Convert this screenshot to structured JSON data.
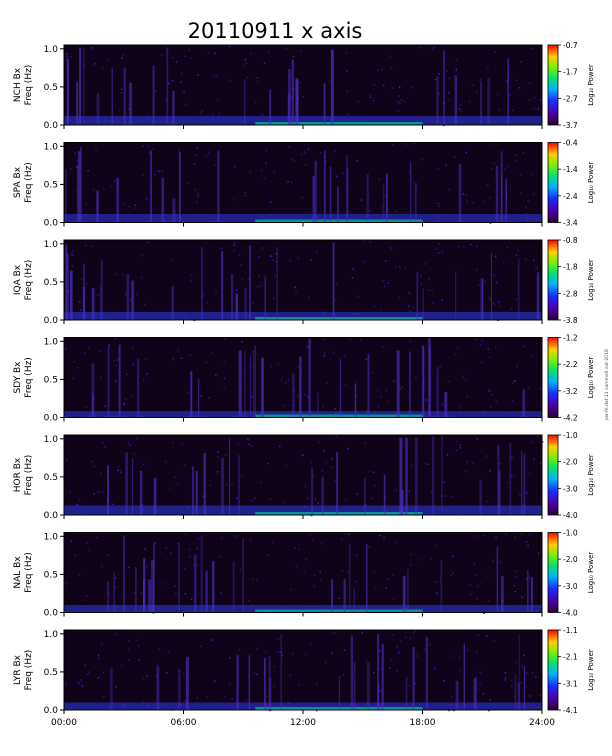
{
  "title": "20110911 x axis",
  "side_note": "pw-RI.dat:11 sammell-zat-2018",
  "chart_data": [
    {
      "type": "heatmap",
      "station": "NCH",
      "ylabel": [
        "NCH Bx",
        "Freq (Hz)"
      ],
      "ylim": [
        0,
        1.05
      ],
      "yticks": [
        "0.0",
        "0.5",
        "1.0"
      ],
      "xticks": [
        "00:00",
        "06:00",
        "12:00",
        "18:00",
        "24:00"
      ],
      "colorbar": {
        "label": "Log₁₀ Power",
        "range": [
          -3.7,
          -0.7
        ],
        "ticks": [
          "-0.7",
          "-1.7",
          "-2.7",
          "-3.7"
        ]
      }
    },
    {
      "type": "heatmap",
      "station": "SPA",
      "ylabel": [
        "SPA Bx",
        "Freq (Hz)"
      ],
      "ylim": [
        0,
        1.05
      ],
      "yticks": [
        "0.0",
        "0.5",
        "1.0"
      ],
      "xticks": [
        "00:00",
        "06:00",
        "12:00",
        "18:00",
        "24:00"
      ],
      "colorbar": {
        "label": "Log₁₀ Power",
        "range": [
          -3.4,
          -0.4
        ],
        "ticks": [
          "-0.4",
          "-1.4",
          "-2.4",
          "-3.4"
        ]
      }
    },
    {
      "type": "heatmap",
      "station": "IQA",
      "ylabel": [
        "IQA Bx",
        "Freq (Hz)"
      ],
      "ylim": [
        0,
        1.05
      ],
      "yticks": [
        "0.0",
        "0.5",
        "1.0"
      ],
      "xticks": [
        "00:00",
        "06:00",
        "12:00",
        "18:00",
        "24:00"
      ],
      "colorbar": {
        "label": "Log₁₀ Power",
        "range": [
          -3.8,
          -0.8
        ],
        "ticks": [
          "-0.8",
          "-1.8",
          "-2.8",
          "-3.8"
        ]
      }
    },
    {
      "type": "heatmap",
      "station": "SDY",
      "ylabel": [
        "SDY Bx",
        "Freq (Hz)"
      ],
      "ylim": [
        0,
        1.05
      ],
      "yticks": [
        "0.0",
        "0.5",
        "1.0"
      ],
      "xticks": [
        "00:00",
        "06:00",
        "12:00",
        "18:00",
        "24:00"
      ],
      "colorbar": {
        "label": "Log₁₀ Power",
        "range": [
          -4.2,
          -1.2
        ],
        "ticks": [
          "-1.2",
          "-2.2",
          "-3.2",
          "-4.2"
        ]
      }
    },
    {
      "type": "heatmap",
      "station": "HOR",
      "ylabel": [
        "HOR Bx",
        "Freq (Hz)"
      ],
      "ylim": [
        0,
        1.05
      ],
      "yticks": [
        "0.0",
        "0.5",
        "1.0"
      ],
      "xticks": [
        "00:00",
        "06:00",
        "12:00",
        "18:00",
        "24:00"
      ],
      "colorbar": {
        "label": "Log₁₀ Power",
        "range": [
          -4.0,
          -1.0
        ],
        "ticks": [
          "-1.0",
          "-2.0",
          "-3.0",
          "-4.0"
        ]
      }
    },
    {
      "type": "heatmap",
      "station": "NAL",
      "ylabel": [
        "NAL Bx",
        "Freq (Hz)"
      ],
      "ylim": [
        0,
        1.05
      ],
      "yticks": [
        "0.0",
        "0.5",
        "1.0"
      ],
      "xticks": [
        "00:00",
        "06:00",
        "12:00",
        "18:00",
        "24:00"
      ],
      "colorbar": {
        "label": "Log₁₀ Power",
        "range": [
          -4.0,
          -1.0
        ],
        "ticks": [
          "-1.0",
          "-2.0",
          "-3.0",
          "-4.0"
        ]
      }
    },
    {
      "type": "heatmap",
      "station": "LYR",
      "ylabel": [
        "LYR Bx",
        "Freq (Hz)"
      ],
      "ylim": [
        0,
        1.05
      ],
      "yticks": [
        "0.0",
        "0.5",
        "1.0"
      ],
      "xticks": [
        "00:00",
        "06:00",
        "12:00",
        "18:00",
        "24:00"
      ],
      "colorbar": {
        "label": "Log₁₀ Power",
        "range": [
          -4.1,
          -1.1
        ],
        "ticks": [
          "-1.1",
          "-2.1",
          "-3.1",
          "-4.1"
        ]
      }
    }
  ]
}
